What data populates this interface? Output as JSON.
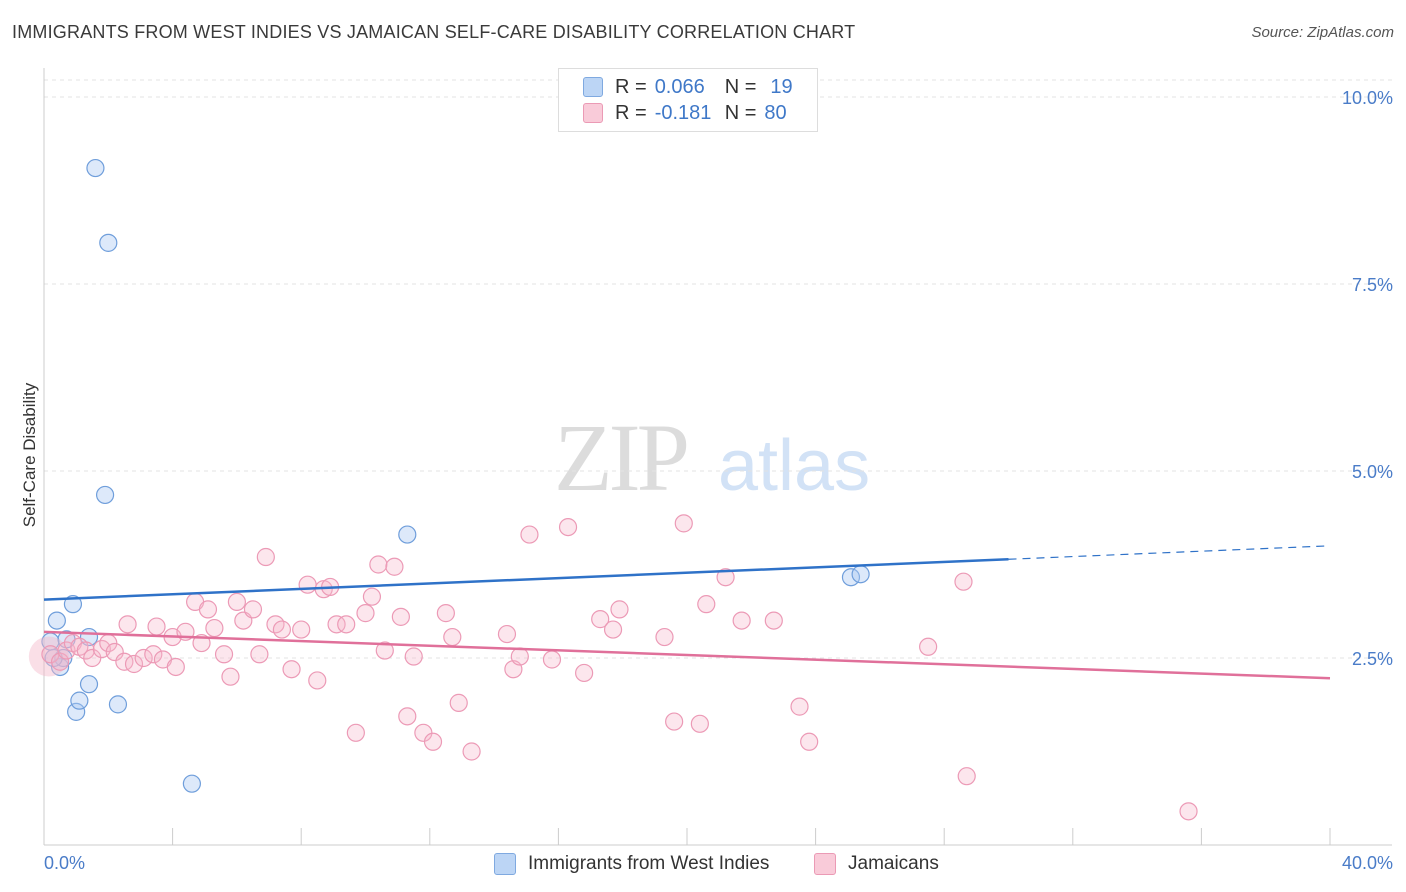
{
  "title": "IMMIGRANTS FROM WEST INDIES VS JAMAICAN SELF-CARE DISABILITY CORRELATION CHART",
  "source": "Source: ZipAtlas.com",
  "watermark": {
    "zip": "ZIP",
    "atlas": "atlas"
  },
  "legend": {
    "series1": {
      "r_label": "R =",
      "r_value": "0.066",
      "n_label": "N =",
      "n_value": "19"
    },
    "series2": {
      "r_label": "R =",
      "r_value": "-0.181",
      "n_label": "N =",
      "n_value": "80"
    }
  },
  "chart_data": {
    "type": "scatter",
    "title": "IMMIGRANTS FROM WEST INDIES VS JAMAICAN SELF-CARE DISABILITY CORRELATION CHART",
    "xlabel": "",
    "ylabel": "Self-Care Disability",
    "xlim": [
      0,
      40
    ],
    "ylim": [
      0,
      10.5
    ],
    "x_tick_labels": [
      "0.0%",
      "40.0%"
    ],
    "y_ticks": [
      2.5,
      5.0,
      7.5,
      10.0
    ],
    "y_tick_labels": [
      "2.5%",
      "5.0%",
      "7.5%",
      "10.0%"
    ],
    "grid": true,
    "legend_position": "top-center",
    "colors": {
      "series1": "#a9c9f2",
      "series1_line": "#2f72c8",
      "series2": "#f5b7ca",
      "series2_line": "#e0709a",
      "tick": "#4a7cc8"
    },
    "series": [
      {
        "name": "Immigrants from West Indies",
        "r": 0.066,
        "n": 19,
        "trend": {
          "x0": 0,
          "y0": 3.28,
          "x1": 30,
          "y1": 3.82,
          "dash_to_x": 40,
          "dash_to_y": 4.0
        },
        "points": [
          [
            0.2,
            2.72
          ],
          [
            0.4,
            3.0
          ],
          [
            0.5,
            2.38
          ],
          [
            0.6,
            2.5
          ],
          [
            0.7,
            2.75
          ],
          [
            0.9,
            3.22
          ],
          [
            1.0,
            1.78
          ],
          [
            1.1,
            1.93
          ],
          [
            1.4,
            2.15
          ],
          [
            1.4,
            2.78
          ],
          [
            1.6,
            9.05
          ],
          [
            1.9,
            4.68
          ],
          [
            2.0,
            8.05
          ],
          [
            2.3,
            1.88
          ],
          [
            4.6,
            0.82
          ],
          [
            11.3,
            4.15
          ],
          [
            25.1,
            3.58
          ],
          [
            25.4,
            3.62
          ],
          [
            0.3,
            2.5
          ]
        ]
      },
      {
        "name": "Jamaicans",
        "r": -0.181,
        "n": 80,
        "trend": {
          "x0": 0,
          "y0": 2.85,
          "x1": 40,
          "y1": 2.23
        },
        "points": [
          [
            0.2,
            2.55
          ],
          [
            0.5,
            2.45
          ],
          [
            0.7,
            2.6
          ],
          [
            0.9,
            2.7
          ],
          [
            1.1,
            2.65
          ],
          [
            1.3,
            2.6
          ],
          [
            1.5,
            2.5
          ],
          [
            1.8,
            2.62
          ],
          [
            2.0,
            2.7
          ],
          [
            2.2,
            2.58
          ],
          [
            2.5,
            2.45
          ],
          [
            2.6,
            2.95
          ],
          [
            2.8,
            2.42
          ],
          [
            3.1,
            2.5
          ],
          [
            3.4,
            2.55
          ],
          [
            3.5,
            2.92
          ],
          [
            3.7,
            2.48
          ],
          [
            4.0,
            2.78
          ],
          [
            4.1,
            2.38
          ],
          [
            4.4,
            2.85
          ],
          [
            4.7,
            3.25
          ],
          [
            4.9,
            2.7
          ],
          [
            5.1,
            3.15
          ],
          [
            5.3,
            2.9
          ],
          [
            5.6,
            2.55
          ],
          [
            5.8,
            2.25
          ],
          [
            6.0,
            3.25
          ],
          [
            6.2,
            3.0
          ],
          [
            6.5,
            3.15
          ],
          [
            6.7,
            2.55
          ],
          [
            6.9,
            3.85
          ],
          [
            7.2,
            2.95
          ],
          [
            7.4,
            2.88
          ],
          [
            7.7,
            2.35
          ],
          [
            8.0,
            2.88
          ],
          [
            8.2,
            3.48
          ],
          [
            8.5,
            2.2
          ],
          [
            8.7,
            3.42
          ],
          [
            8.9,
            3.45
          ],
          [
            9.1,
            2.95
          ],
          [
            9.4,
            2.95
          ],
          [
            9.7,
            1.5
          ],
          [
            10.0,
            3.1
          ],
          [
            10.2,
            3.32
          ],
          [
            10.4,
            3.75
          ],
          [
            10.6,
            2.6
          ],
          [
            10.9,
            3.72
          ],
          [
            11.1,
            3.05
          ],
          [
            11.3,
            1.72
          ],
          [
            11.5,
            2.52
          ],
          [
            11.8,
            1.5
          ],
          [
            12.1,
            1.38
          ],
          [
            12.5,
            3.1
          ],
          [
            12.7,
            2.78
          ],
          [
            12.9,
            1.9
          ],
          [
            13.3,
            1.25
          ],
          [
            14.4,
            2.82
          ],
          [
            14.6,
            2.35
          ],
          [
            14.8,
            2.52
          ],
          [
            15.1,
            4.15
          ],
          [
            15.8,
            2.48
          ],
          [
            16.3,
            4.25
          ],
          [
            16.8,
            2.3
          ],
          [
            17.3,
            3.02
          ],
          [
            17.7,
            2.88
          ],
          [
            17.9,
            3.15
          ],
          [
            19.3,
            2.78
          ],
          [
            19.6,
            1.65
          ],
          [
            19.9,
            4.3
          ],
          [
            20.4,
            1.62
          ],
          [
            20.6,
            3.22
          ],
          [
            21.2,
            3.58
          ],
          [
            21.7,
            3.0
          ],
          [
            22.7,
            3.0
          ],
          [
            23.5,
            1.85
          ],
          [
            23.8,
            1.38
          ],
          [
            27.5,
            2.65
          ],
          [
            28.6,
            3.52
          ],
          [
            28.7,
            0.92
          ],
          [
            35.6,
            0.45
          ]
        ]
      }
    ]
  },
  "bottom_legend": [
    {
      "label": "Immigrants from West Indies"
    },
    {
      "label": "Jamaicans"
    }
  ]
}
